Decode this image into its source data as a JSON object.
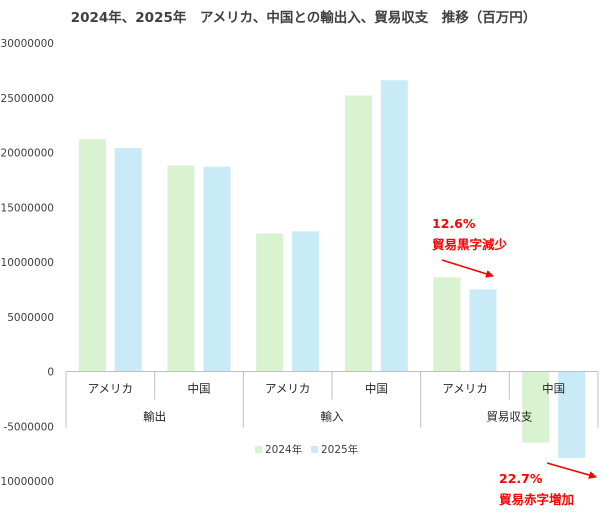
{
  "chart_data": {
    "type": "bar",
    "title": "2024年、2025年　アメリカ、中国との輸出入、貿易収支　推移（百万円）",
    "xlabel": "",
    "ylabel": "",
    "ylim": [
      -10000000,
      30000000
    ],
    "yticks": [
      30000000,
      25000000,
      20000000,
      15000000,
      10000000,
      5000000,
      0,
      -5000000,
      -10000000
    ],
    "categories": [
      "アメリカ",
      "中国",
      "アメリカ",
      "中国",
      "アメリカ",
      "中国"
    ],
    "groups": [
      "輸出",
      "輸入",
      "貿易収支"
    ],
    "series": [
      {
        "name": "2024年",
        "color": "#d9f2d0",
        "values": [
          21200000,
          18800000,
          12600000,
          25200000,
          8600000,
          -6500000
        ]
      },
      {
        "name": "2025年",
        "color": "#c9ebf8",
        "values": [
          20400000,
          18700000,
          12800000,
          26600000,
          7500000,
          -7900000
        ]
      }
    ],
    "legend": "bottom",
    "grid": false,
    "annotations": [
      {
        "line1": "12.6%",
        "line2": "貿易黒字減少",
        "color": "#ff0000"
      },
      {
        "line1": "22.7%",
        "line2": "貿易赤字増加",
        "color": "#ff0000"
      }
    ]
  }
}
